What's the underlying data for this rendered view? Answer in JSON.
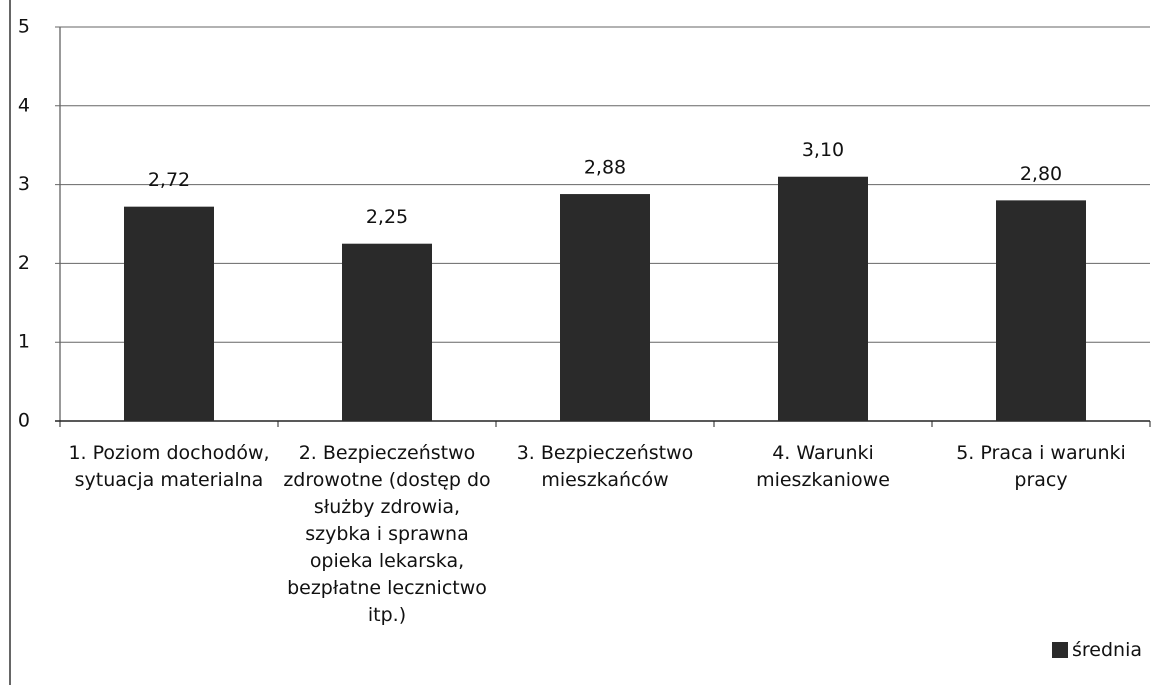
{
  "chart_data": {
    "type": "bar",
    "categories": [
      "1. Poziom dochodów, sytuacja materialna",
      "2. Bezpieczeństwo zdrowotne (dostęp do służby zdrowia, szybka i sprawna opieka lekarska, bezpłatne lecznictwo itp.)",
      "3. Bezpieczeństwo mieszkańców",
      "4. Warunki mieszkaniowe",
      "5. Praca i warunki pracy"
    ],
    "series": [
      {
        "name": "średnia",
        "color": "#2a2a2a",
        "values": [
          2.72,
          2.25,
          2.88,
          3.1,
          2.8
        ],
        "value_labels": [
          "2,72",
          "2,25",
          "2,88",
          "3,10",
          "2,80"
        ]
      }
    ],
    "ylim": [
      0,
      5
    ],
    "yticks": [
      0,
      1,
      2,
      3,
      4,
      5
    ],
    "grid": true,
    "legend": "bottom-right"
  }
}
